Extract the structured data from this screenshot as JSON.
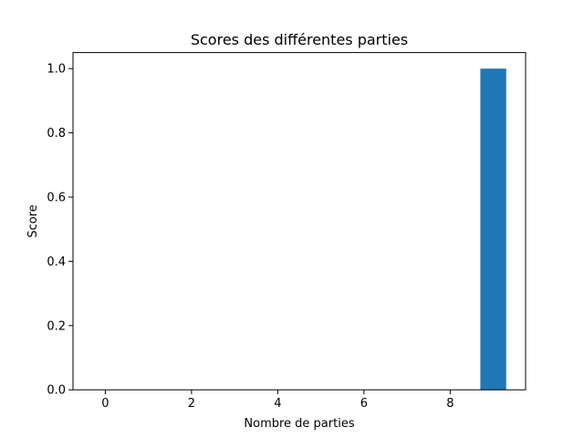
{
  "chart_data": {
    "type": "bar",
    "title": "Scores des différentes parties",
    "xlabel": "Nombre de parties",
    "ylabel": "Score",
    "x": [
      0,
      1,
      2,
      3,
      4,
      5,
      6,
      7,
      8,
      9
    ],
    "values": [
      0,
      0,
      0,
      0,
      0,
      0,
      0,
      0,
      0,
      1.0
    ],
    "bar_width": 0.6,
    "xlim": [
      -0.75,
      9.75
    ],
    "ylim": [
      0,
      1.05
    ],
    "xticks": [
      0,
      2,
      4,
      6,
      8
    ],
    "xtick_labels": [
      "0",
      "2",
      "4",
      "6",
      "8"
    ],
    "yticks": [
      0,
      0.2,
      0.4,
      0.6,
      0.8,
      1.0
    ],
    "ytick_labels": [
      "0.0",
      "0.2",
      "0.4",
      "0.6",
      "0.8",
      "1.0"
    ],
    "bar_color": "#1f77b4",
    "grid": false,
    "legend": false
  }
}
